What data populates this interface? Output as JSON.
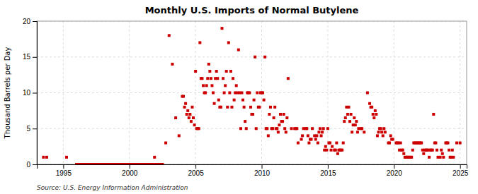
{
  "chart_data": {
    "type": "scatter",
    "title": "Monthly U.S. Imports of Normal Butylene",
    "y_label": "Thousand Barrels per Day",
    "source": "Source: U.S. Energy Information Administration",
    "xlim": [
      1993.0,
      2025.5
    ],
    "ylim": [
      0,
      20
    ],
    "xticks": [
      1995,
      2000,
      2005,
      2010,
      2015,
      2020,
      2025
    ],
    "yticks": [
      0,
      5,
      10,
      15,
      20
    ],
    "grid": true,
    "color": "#cc0000",
    "marker": "square",
    "x": [
      1993.5,
      1993.75,
      1995.25,
      1996.0,
      1996.1,
      1996.2,
      1996.3,
      1996.4,
      1996.5,
      1996.6,
      1996.7,
      1996.8,
      1996.9,
      1997.0,
      1997.1,
      1997.2,
      1997.3,
      1997.4,
      1997.5,
      1997.6,
      1997.7,
      1997.8,
      1997.9,
      1998.0,
      1998.1,
      1998.2,
      1998.3,
      1998.4,
      1998.5,
      1998.6,
      1998.7,
      1998.8,
      1998.9,
      1999.0,
      1999.1,
      1999.2,
      1999.3,
      1999.4,
      1999.5,
      1999.6,
      1999.7,
      1999.8,
      1999.9,
      2000.0,
      2000.1,
      2000.2,
      2000.3,
      2000.4,
      2000.5,
      2000.6,
      2000.7,
      2000.8,
      2000.9,
      2001.0,
      2001.1,
      2001.2,
      2001.3,
      2001.4,
      2001.5,
      2001.6,
      2001.7,
      2001.8,
      2001.9,
      2002.0,
      2002.1,
      2002.2,
      2002.3,
      2002.4,
      2002.5,
      2002.75,
      2003.0,
      2003.25,
      2003.5,
      2003.75,
      2004.0,
      2004.083,
      2004.167,
      2004.25,
      2004.333,
      2004.417,
      2004.5,
      2004.583,
      2004.667,
      2004.75,
      2004.833,
      2004.917,
      2005.0,
      2005.083,
      2005.167,
      2005.25,
      2005.333,
      2005.417,
      2005.5,
      2005.583,
      2005.667,
      2005.75,
      2005.833,
      2005.917,
      2006.0,
      2006.083,
      2006.167,
      2006.25,
      2006.333,
      2006.417,
      2006.5,
      2006.583,
      2006.667,
      2006.75,
      2006.833,
      2006.917,
      2007.0,
      2007.083,
      2007.167,
      2007.25,
      2007.333,
      2007.417,
      2007.5,
      2007.583,
      2007.667,
      2007.75,
      2007.833,
      2007.917,
      2008.0,
      2008.083,
      2008.167,
      2008.25,
      2008.333,
      2008.417,
      2008.5,
      2008.583,
      2008.667,
      2008.75,
      2008.833,
      2008.917,
      2009.0,
      2009.083,
      2009.167,
      2009.25,
      2009.333,
      2009.417,
      2009.5,
      2009.583,
      2009.667,
      2009.75,
      2009.833,
      2009.917,
      2010.0,
      2010.083,
      2010.167,
      2010.25,
      2010.333,
      2010.417,
      2010.5,
      2010.583,
      2010.667,
      2010.75,
      2010.833,
      2010.917,
      2011.0,
      2011.083,
      2011.167,
      2011.25,
      2011.333,
      2011.417,
      2011.5,
      2011.583,
      2011.667,
      2011.75,
      2011.833,
      2011.917,
      2012.0,
      2012.25,
      2012.5,
      2012.583,
      2012.667,
      2012.75,
      2013.0,
      2013.083,
      2013.167,
      2013.333,
      2013.417,
      2013.5,
      2013.583,
      2013.667,
      2013.75,
      2013.833,
      2014.0,
      2014.083,
      2014.167,
      2014.25,
      2014.333,
      2014.417,
      2014.5,
      2014.583,
      2014.667,
      2014.75,
      2014.833,
      2014.917,
      2015.0,
      2015.083,
      2015.167,
      2015.25,
      2015.333,
      2015.5,
      2015.583,
      2015.667,
      2015.75,
      2015.833,
      2015.917,
      2016.0,
      2016.083,
      2016.167,
      2016.25,
      2016.333,
      2016.417,
      2016.5,
      2016.583,
      2016.667,
      2016.75,
      2016.833,
      2016.917,
      2017.0,
      2017.083,
      2017.167,
      2017.25,
      2017.333,
      2017.5,
      2017.583,
      2017.75,
      2018.0,
      2018.167,
      2018.25,
      2018.333,
      2018.417,
      2018.5,
      2018.583,
      2018.667,
      2018.75,
      2018.833,
      2018.917,
      2019.0,
      2019.083,
      2019.167,
      2019.25,
      2019.333,
      2019.583,
      2019.667,
      2019.75,
      2019.833,
      2019.917,
      2020.167,
      2020.25,
      2020.333,
      2020.417,
      2020.5,
      2020.583,
      2020.667,
      2020.75,
      2020.833,
      2020.917,
      2021.0,
      2021.083,
      2021.167,
      2021.25,
      2021.333,
      2021.417,
      2021.5,
      2021.583,
      2021.667,
      2021.75,
      2021.833,
      2021.917,
      2022.0,
      2022.083,
      2022.167,
      2022.25,
      2022.333,
      2022.417,
      2022.5,
      2022.583,
      2022.667,
      2022.75,
      2022.833,
      2022.917,
      2023.0,
      2023.083,
      2023.167,
      2023.25,
      2023.333,
      2023.5,
      2023.583,
      2023.667,
      2023.75,
      2023.917,
      2024.0,
      2024.083,
      2024.167,
      2024.25,
      2024.333,
      2024.417,
      2024.5,
      2024.75,
      2025.0
    ],
    "values": [
      1.0,
      1.0,
      1.0,
      0.0,
      0.0,
      0.0,
      0.0,
      0.0,
      0.0,
      0.0,
      0.0,
      0.0,
      0.0,
      0.0,
      0.0,
      0.0,
      0.0,
      0.0,
      0.0,
      0.0,
      0.0,
      0.0,
      0.0,
      0.0,
      0.0,
      0.0,
      0.0,
      0.0,
      0.0,
      0.0,
      0.0,
      0.0,
      0.0,
      0.0,
      0.0,
      0.0,
      0.0,
      0.0,
      0.0,
      0.0,
      0.0,
      0.0,
      0.0,
      0.0,
      0.0,
      0.0,
      0.0,
      0.0,
      0.0,
      0.0,
      0.0,
      0.0,
      0.0,
      0.0,
      0.0,
      0.0,
      0.0,
      0.0,
      0.0,
      0.0,
      0.0,
      0.0,
      1.0,
      0.0,
      0.0,
      0.0,
      0.0,
      0.0,
      0.0,
      3.0,
      18.0,
      14.0,
      6.5,
      4.0,
      9.5,
      9.5,
      8.0,
      8.5,
      7.0,
      7.5,
      6.5,
      7.0,
      6.0,
      8.0,
      6.5,
      5.5,
      13.0,
      5.0,
      5.0,
      5.0,
      17.0,
      12.0,
      12.0,
      11.0,
      10.0,
      10.0,
      11.0,
      12.0,
      14.0,
      13.0,
      12.0,
      11.0,
      10.0,
      8.5,
      12.0,
      13.0,
      12.0,
      9.0,
      8.0,
      8.0,
      19.0,
      12.0,
      10.0,
      11.0,
      13.0,
      8.0,
      17.0,
      10.0,
      13.0,
      8.0,
      12.0,
      9.0,
      10.0,
      11.0,
      10.0,
      16.0,
      10.0,
      5.0,
      10.0,
      9.0,
      8.0,
      6.0,
      5.0,
      10.0,
      10.0,
      10.0,
      8.0,
      7.0,
      7.0,
      9.0,
      15.0,
      5.0,
      10.0,
      8.0,
      8.0,
      10.0,
      10.0,
      10.0,
      9.0,
      15.0,
      5.0,
      5.0,
      4.0,
      7.0,
      8.0,
      5.0,
      5.0,
      6.5,
      8.0,
      5.0,
      5.0,
      4.5,
      5.5,
      7.0,
      6.0,
      6.0,
      7.0,
      5.0,
      4.5,
      6.5,
      12.0,
      5.0,
      5.0,
      5.0,
      5.0,
      3.0,
      3.5,
      4.0,
      5.0,
      5.0,
      5.0,
      4.0,
      3.0,
      3.5,
      3.5,
      5.0,
      4.0,
      3.5,
      4.0,
      3.0,
      4.5,
      5.0,
      4.0,
      4.5,
      5.0,
      2.0,
      2.5,
      2.0,
      5.0,
      3.0,
      3.0,
      2.0,
      2.5,
      2.0,
      2.0,
      3.0,
      1.5,
      2.0,
      2.0,
      2.0,
      2.0,
      3.0,
      6.0,
      6.5,
      8.0,
      7.0,
      8.0,
      6.0,
      7.0,
      4.5,
      5.5,
      6.5,
      5.5,
      6.0,
      4.5,
      5.0,
      5.0,
      5.0,
      4.5,
      10.0,
      8.5,
      8.0,
      8.0,
      7.0,
      6.5,
      7.5,
      7.0,
      4.0,
      4.5,
      5.0,
      5.0,
      4.5,
      4.0,
      5.0,
      4.5,
      3.0,
      3.0,
      4.0,
      3.5,
      3.5,
      3.0,
      3.0,
      3.0,
      2.0,
      3.0,
      2.0,
      2.0,
      1.5,
      1.0,
      1.0,
      1.0,
      1.0,
      1.0,
      1.0,
      1.0,
      2.0,
      3.0,
      3.0,
      3.0,
      3.0,
      3.0,
      3.0,
      3.0,
      3.0,
      2.0,
      1.5,
      2.0,
      2.0,
      2.0,
      2.0,
      1.0,
      2.0,
      2.0,
      2.0,
      7.0,
      3.0,
      3.0,
      2.0,
      1.0,
      1.0,
      2.0,
      1.5,
      1.0,
      3.0,
      3.0,
      3.0,
      2.0,
      1.0,
      1.0,
      2.0,
      1.0,
      3.0,
      3.0
    ]
  }
}
